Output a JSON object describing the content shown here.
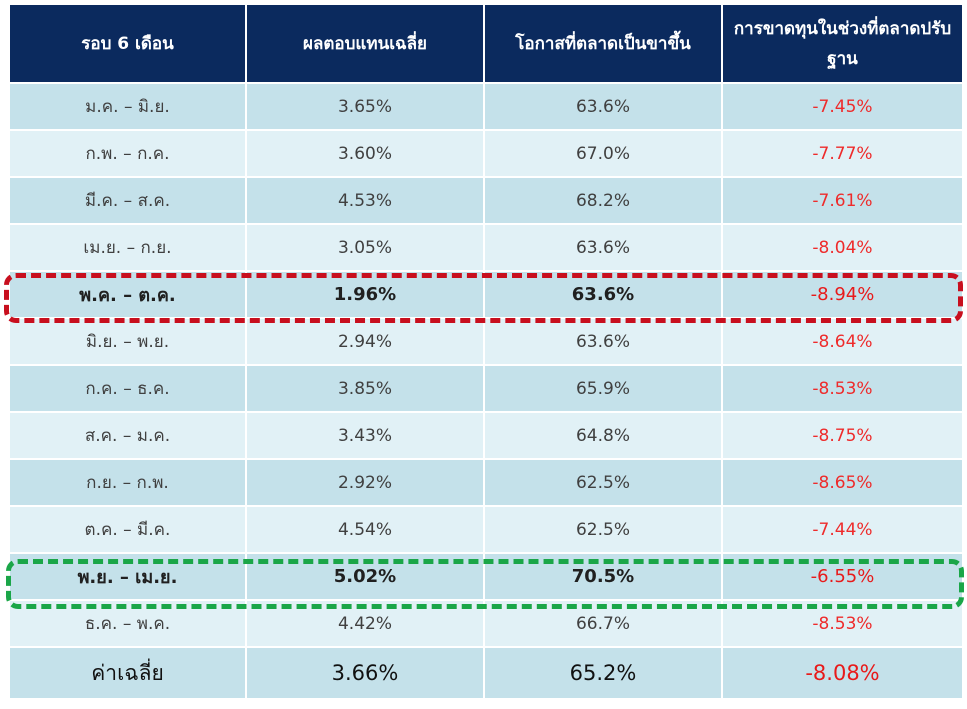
{
  "chart_data": {
    "type": "table",
    "columns": [
      "รอบ 6 เดือน",
      "ผลตอบแทนเฉลี่ย",
      "โอกาสที่ตลาดเป็นขาขึ้น",
      "การขาดทุนในช่วงที่ตลาดปรับฐาน"
    ],
    "rows": [
      [
        "ม.ค. – มิ.ย.",
        "3.65%",
        "63.6%",
        "-7.45%"
      ],
      [
        "ก.พ. – ก.ค.",
        "3.60%",
        "67.0%",
        "-7.77%"
      ],
      [
        "มี.ค. – ส.ค.",
        "4.53%",
        "68.2%",
        "-7.61%"
      ],
      [
        "เม.ย. – ก.ย.",
        "3.05%",
        "63.6%",
        "-8.04%"
      ],
      [
        "พ.ค. – ต.ค.",
        "1.96%",
        "63.6%",
        "-8.94%"
      ],
      [
        "มิ.ย. – พ.ย.",
        "2.94%",
        "63.6%",
        "-8.64%"
      ],
      [
        "ก.ค. – ธ.ค.",
        "3.85%",
        "65.9%",
        "-8.53%"
      ],
      [
        "ส.ค. – ม.ค.",
        "3.43%",
        "64.8%",
        "-8.75%"
      ],
      [
        "ก.ย. – ก.พ.",
        "2.92%",
        "62.5%",
        "-8.65%"
      ],
      [
        "ต.ค. – มี.ค.",
        "4.54%",
        "62.5%",
        "-7.44%"
      ],
      [
        "พ.ย. – เม.ย.",
        "5.02%",
        "70.5%",
        "-6.55%"
      ],
      [
        "ธ.ค. – พ.ค.",
        "4.42%",
        "66.7%",
        "-8.53%"
      ]
    ],
    "average": [
      "ค่าเฉลี่ย",
      "3.66%",
      "65.2%",
      "-8.08%"
    ],
    "highlight_rows": [
      {
        "row": 4,
        "color": "#c80f1e"
      },
      {
        "row": 10,
        "color": "#1aa648"
      }
    ],
    "negative_color": "#ee2b2b",
    "header_color": "#0b2a5e",
    "row_colors": [
      "#c4e1ea",
      "#e1f1f6"
    ]
  }
}
